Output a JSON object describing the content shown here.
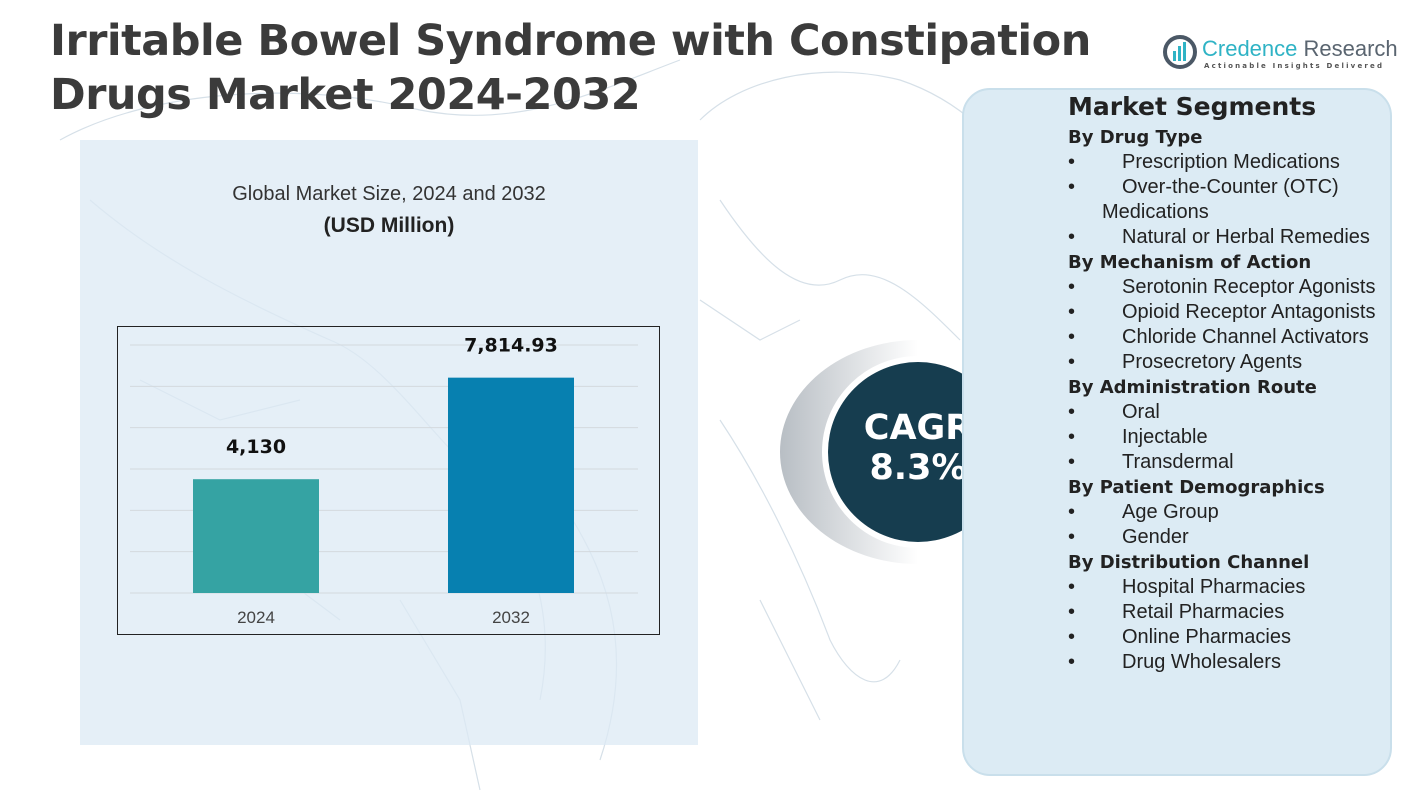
{
  "title_lines": [
    "Irritable Bowel Syndrome with Constipation",
    "Drugs Market  2024-2032"
  ],
  "logo": {
    "name_part1": "Credence",
    "name_part2": " Research",
    "tagline": "Actionable Insights Delivered"
  },
  "colors": {
    "bar_2024": "#35a3a3",
    "bar_2032": "#0780b0",
    "cagr_circle": "#163d4f",
    "panel": "#dcebf4"
  },
  "chart_data": {
    "type": "bar",
    "title": "Global Market Size, 2024 and 2032",
    "subtitle": "(USD Million)",
    "categories": [
      "2024",
      "2032"
    ],
    "values": [
      4130,
      7814.93
    ],
    "data_labels": [
      "4,130",
      "7,814.93"
    ],
    "ylim": [
      0,
      9000
    ],
    "grid": true,
    "y_axis_labels_shown": false
  },
  "cagr": {
    "label": "CAGR",
    "value": "8.3%"
  },
  "segments": {
    "title": "Market Segments",
    "groups": [
      {
        "heading": "By Drug Type",
        "items": [
          "Prescription Medications",
          "Over-the-Counter (OTC) Medications",
          "Natural or Herbal Remedies"
        ]
      },
      {
        "heading": "By Mechanism of Action",
        "items": [
          "Serotonin Receptor Agonists",
          "Opioid Receptor Antagonists",
          "Chloride Channel Activators",
          "Prosecretory Agents"
        ]
      },
      {
        "heading": "By Administration Route",
        "items": [
          "Oral",
          "Injectable",
          "Transdermal"
        ]
      },
      {
        "heading": "By Patient Demographics",
        "items": [
          "Age Group",
          "Gender"
        ]
      },
      {
        "heading": "By Distribution Channel",
        "items": [
          "Hospital Pharmacies",
          "Retail Pharmacies",
          "Online Pharmacies",
          "Drug Wholesalers"
        ]
      }
    ]
  }
}
